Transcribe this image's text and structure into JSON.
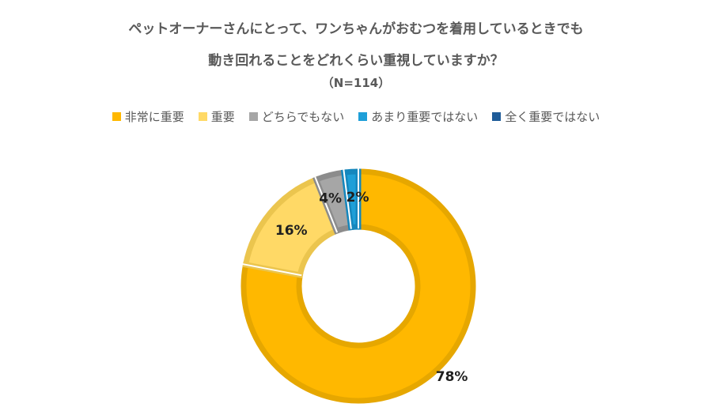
{
  "title_line1": "ペットオーナーさんにとって、ワンちゃんがおむつを着用しているときでも",
  "title_line2": "動き回れることをどれくらい重視していますか？",
  "sample_size": "（N=114）",
  "chart_data": {
    "type": "pie",
    "donut": true,
    "categories": [
      "非常に重要",
      "重要",
      "どちらでもない",
      "あまり重要ではない",
      "全く重要ではない"
    ],
    "values": [
      78,
      16,
      4,
      2,
      0
    ],
    "data_labels": [
      "78%",
      "16%",
      "4%",
      "2%",
      ""
    ],
    "colors": [
      "#FFB800",
      "#FFD966",
      "#A6A6A6",
      "#1E9FD8",
      "#1F5C99"
    ],
    "border_colors": [
      "#E6A700",
      "#EBC54E",
      "#8C8C8C",
      "#1587BD",
      "#1F5C99"
    ],
    "legend_position": "top"
  }
}
